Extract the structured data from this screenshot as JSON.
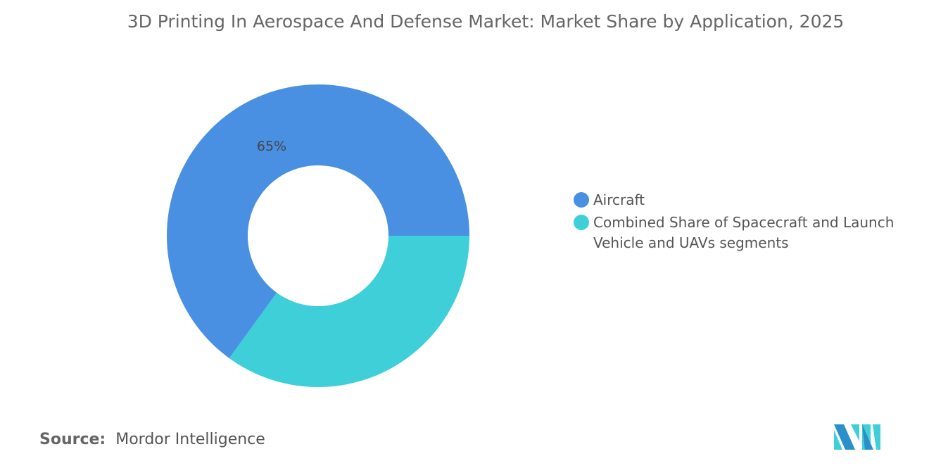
{
  "chart_data": {
    "type": "pie",
    "variant": "donut",
    "title": "3D Printing In Aerospace And Defense Market: Market Share by Application, 2025",
    "categories": [
      "Aircraft",
      "Combined Share of Spacecraft and Launch Vehicle and UAVs segments"
    ],
    "values": [
      65,
      35
    ],
    "unit": "%",
    "data_labels": [
      "65%",
      ""
    ],
    "colors": [
      "#4a90e2",
      "#3ecfd9"
    ],
    "legend_position": "right"
  },
  "source": {
    "label": "Source:",
    "value": "Mordor Intelligence"
  },
  "logo": {
    "text": "Mordor Intelligence",
    "colors": [
      "#2b8fc9",
      "#3ecfd9"
    ]
  }
}
